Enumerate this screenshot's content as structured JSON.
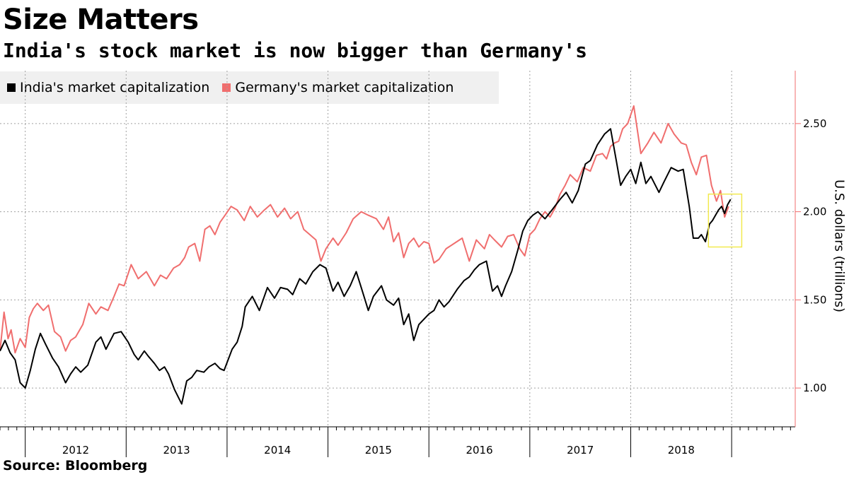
{
  "chart_data": {
    "type": "line",
    "title": "Size Matters",
    "subtitle": "India's stock market is now bigger than Germany's",
    "source": "Source: Bloomberg",
    "ylabel": "U.S. dollars (trillions)",
    "xlabel": "",
    "ylim": [
      0.78,
      2.8
    ],
    "yticks": [
      1.0,
      1.5,
      2.0,
      2.5
    ],
    "ytick_labels": [
      "1.00",
      "1.50",
      "2.00",
      "2.50"
    ],
    "xlim": [
      2011.75,
      2019.63
    ],
    "year_boundaries": [
      2012,
      2013,
      2014,
      2015,
      2016,
      2017,
      2018,
      2019
    ],
    "year_labels": [
      {
        "label": "2012",
        "x": 2012.5
      },
      {
        "label": "2013",
        "x": 2013.5
      },
      {
        "label": "2014",
        "x": 2014.5
      },
      {
        "label": "2015",
        "x": 2015.5
      },
      {
        "label": "2016",
        "x": 2016.5
      },
      {
        "label": "2017",
        "x": 2017.5
      },
      {
        "label": "2018",
        "x": 2018.5
      }
    ],
    "grid": true,
    "legend_position": "top-left",
    "series": [
      {
        "name": "India's market capitalization",
        "color": "#000000",
        "x": [
          2011.75,
          2011.8,
          2011.85,
          2011.9,
          2011.95,
          2012.0,
          2012.05,
          2012.1,
          2012.15,
          2012.2,
          2012.27,
          2012.33,
          2012.4,
          2012.45,
          2012.5,
          2012.55,
          2012.62,
          2012.7,
          2012.75,
          2012.8,
          2012.88,
          2012.95,
          2013.02,
          2013.08,
          2013.12,
          2013.18,
          2013.22,
          2013.28,
          2013.33,
          2013.38,
          2013.42,
          2013.48,
          2013.55,
          2013.6,
          2013.65,
          2013.7,
          2013.77,
          2013.82,
          2013.88,
          2013.93,
          2013.97,
          2014.05,
          2014.1,
          2014.15,
          2014.18,
          2014.25,
          2014.32,
          2014.4,
          2014.47,
          2014.53,
          2014.6,
          2014.65,
          2014.72,
          2014.78,
          2014.85,
          2014.92,
          2014.98,
          2015.05,
          2015.1,
          2015.16,
          2015.22,
          2015.28,
          2015.33,
          2015.4,
          2015.45,
          2015.53,
          2015.58,
          2015.65,
          2015.7,
          2015.75,
          2015.8,
          2015.85,
          2015.9,
          2015.95,
          2016.0,
          2016.05,
          2016.1,
          2016.15,
          2016.2,
          2016.28,
          2016.35,
          2016.4,
          2016.45,
          2016.5,
          2016.57,
          2016.63,
          2016.68,
          2016.72,
          2016.76,
          2016.82,
          2016.88,
          2016.93,
          2016.98,
          2017.03,
          2017.08,
          2017.15,
          2017.22,
          2017.3,
          2017.36,
          2017.42,
          2017.48,
          2017.55,
          2017.6,
          2017.67,
          2017.74,
          2017.8,
          2017.86,
          2017.9,
          2017.95,
          2018.0,
          2018.05,
          2018.1,
          2018.15,
          2018.2,
          2018.28,
          2018.33,
          2018.4,
          2018.47,
          2018.52,
          2018.58,
          2018.62,
          2018.67,
          2018.7,
          2018.74,
          2018.78,
          2018.81,
          2018.84,
          2018.87,
          2018.9,
          2018.93,
          2018.96,
          2018.99
        ],
        "values": [
          1.21,
          1.27,
          1.2,
          1.16,
          1.03,
          1.0,
          1.1,
          1.22,
          1.31,
          1.25,
          1.17,
          1.12,
          1.03,
          1.08,
          1.12,
          1.09,
          1.13,
          1.26,
          1.29,
          1.22,
          1.31,
          1.32,
          1.26,
          1.19,
          1.16,
          1.21,
          1.18,
          1.14,
          1.1,
          1.12,
          1.08,
          0.99,
          0.91,
          1.04,
          1.06,
          1.1,
          1.09,
          1.12,
          1.14,
          1.11,
          1.1,
          1.22,
          1.26,
          1.35,
          1.46,
          1.52,
          1.44,
          1.57,
          1.51,
          1.57,
          1.56,
          1.53,
          1.62,
          1.59,
          1.66,
          1.7,
          1.68,
          1.55,
          1.6,
          1.52,
          1.58,
          1.66,
          1.57,
          1.44,
          1.52,
          1.58,
          1.5,
          1.47,
          1.51,
          1.36,
          1.42,
          1.27,
          1.36,
          1.39,
          1.42,
          1.44,
          1.5,
          1.46,
          1.49,
          1.56,
          1.61,
          1.63,
          1.67,
          1.7,
          1.72,
          1.55,
          1.58,
          1.52,
          1.58,
          1.66,
          1.78,
          1.89,
          1.95,
          1.98,
          2.0,
          1.96,
          2.01,
          2.07,
          2.11,
          2.05,
          2.12,
          2.27,
          2.29,
          2.38,
          2.44,
          2.47,
          2.28,
          2.15,
          2.2,
          2.24,
          2.16,
          2.28,
          2.16,
          2.2,
          2.11,
          2.17,
          2.25,
          2.23,
          2.24,
          2.03,
          1.85,
          1.85,
          1.87,
          1.83,
          1.93,
          1.95,
          1.98,
          2.01,
          2.03,
          1.99,
          2.04,
          2.07
        ]
      },
      {
        "name": "Germany's market capitalization",
        "color": "#f06e6e",
        "x": [
          2011.75,
          2011.79,
          2011.83,
          2011.86,
          2011.9,
          2011.95,
          2012.0,
          2012.04,
          2012.08,
          2012.12,
          2012.18,
          2012.23,
          2012.29,
          2012.35,
          2012.4,
          2012.45,
          2012.5,
          2012.57,
          2012.63,
          2012.7,
          2012.75,
          2012.82,
          2012.88,
          2012.93,
          2012.98,
          2013.05,
          2013.12,
          2013.2,
          2013.28,
          2013.34,
          2013.4,
          2013.47,
          2013.53,
          2013.58,
          2013.62,
          2013.68,
          2013.73,
          2013.78,
          2013.83,
          2013.88,
          2013.93,
          2013.98,
          2014.04,
          2014.1,
          2014.17,
          2014.23,
          2014.3,
          2014.37,
          2014.43,
          2014.5,
          2014.57,
          2014.63,
          2014.7,
          2014.76,
          2014.82,
          2014.88,
          2014.93,
          2014.98,
          2015.05,
          2015.1,
          2015.18,
          2015.25,
          2015.33,
          2015.4,
          2015.48,
          2015.55,
          2015.6,
          2015.65,
          2015.7,
          2015.75,
          2015.8,
          2015.85,
          2015.9,
          2015.95,
          2016.0,
          2016.05,
          2016.1,
          2016.17,
          2016.25,
          2016.33,
          2016.4,
          2016.47,
          2016.55,
          2016.6,
          2016.65,
          2016.72,
          2016.78,
          2016.84,
          2016.9,
          2016.95,
          2017.0,
          2017.05,
          2017.1,
          2017.15,
          2017.2,
          2017.25,
          2017.3,
          2017.35,
          2017.4,
          2017.47,
          2017.53,
          2017.6,
          2017.66,
          2017.72,
          2017.76,
          2017.8,
          2017.84,
          2017.88,
          2017.92,
          2017.97,
          2018.03,
          2018.1,
          2018.17,
          2018.23,
          2018.3,
          2018.37,
          2018.43,
          2018.5,
          2018.55,
          2018.6,
          2018.65,
          2018.7,
          2018.75,
          2018.8,
          2018.85,
          2018.89,
          2018.93,
          2018.97
        ],
        "values": [
          1.21,
          1.43,
          1.28,
          1.33,
          1.2,
          1.28,
          1.23,
          1.4,
          1.45,
          1.48,
          1.44,
          1.47,
          1.32,
          1.29,
          1.21,
          1.27,
          1.29,
          1.36,
          1.48,
          1.42,
          1.46,
          1.44,
          1.52,
          1.59,
          1.58,
          1.7,
          1.62,
          1.66,
          1.58,
          1.64,
          1.62,
          1.68,
          1.7,
          1.74,
          1.8,
          1.82,
          1.72,
          1.9,
          1.92,
          1.87,
          1.94,
          1.98,
          2.03,
          2.01,
          1.95,
          2.03,
          1.97,
          2.01,
          2.04,
          1.97,
          2.02,
          1.96,
          2.0,
          1.9,
          1.87,
          1.84,
          1.72,
          1.79,
          1.85,
          1.81,
          1.88,
          1.96,
          2.0,
          1.98,
          1.96,
          1.9,
          1.97,
          1.83,
          1.88,
          1.74,
          1.82,
          1.85,
          1.8,
          1.83,
          1.82,
          1.71,
          1.73,
          1.79,
          1.82,
          1.85,
          1.72,
          1.84,
          1.79,
          1.87,
          1.84,
          1.8,
          1.86,
          1.87,
          1.79,
          1.75,
          1.87,
          1.9,
          1.96,
          2.0,
          1.97,
          2.02,
          2.1,
          2.15,
          2.21,
          2.17,
          2.25,
          2.23,
          2.32,
          2.33,
          2.3,
          2.37,
          2.39,
          2.4,
          2.47,
          2.5,
          2.6,
          2.33,
          2.39,
          2.45,
          2.39,
          2.5,
          2.44,
          2.39,
          2.38,
          2.28,
          2.21,
          2.31,
          2.32,
          2.15,
          2.06,
          2.12,
          1.97,
          2.03
        ]
      }
    ],
    "annotations": [
      {
        "type": "highlight-box",
        "x_range": [
          2018.77,
          2019.1
        ],
        "y_range": [
          1.8,
          2.1
        ],
        "color": "#f2e94e"
      }
    ]
  },
  "colors": {
    "india": "#000000",
    "germany": "#f06e6e",
    "axis": "#f06e6e",
    "grid": "#a0a0a0",
    "highlight": "#f2e94e",
    "legend_bg": "#f0f0f0"
  }
}
